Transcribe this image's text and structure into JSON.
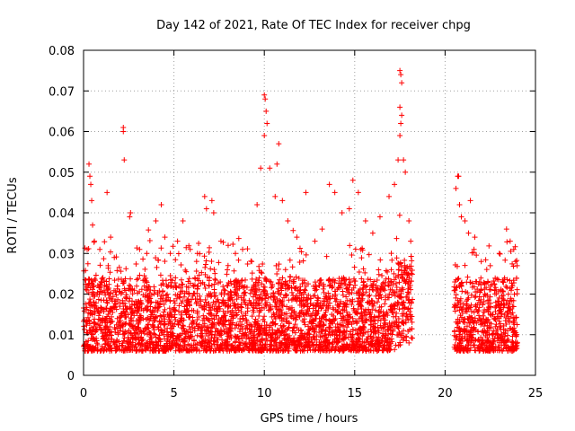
{
  "chart_data": {
    "type": "scatter",
    "title": "Day 142 of 2021, Rate Of TEC Index for receiver chpg",
    "xlabel": "GPS time / hours",
    "ylabel": "ROTI / TECUs",
    "xlim": [
      0,
      25
    ],
    "ylim": [
      0,
      0.08
    ],
    "xticks": [
      0,
      5,
      10,
      15,
      20,
      25
    ],
    "yticks": [
      0,
      0.01,
      0.02,
      0.03,
      0.04,
      0.05,
      0.06,
      0.07,
      0.08
    ],
    "xtick_labels": [
      "0",
      "5",
      "10",
      "15",
      "20",
      "25"
    ],
    "ytick_labels": [
      "0",
      "0.01",
      "0.02",
      "0.03",
      "0.04",
      "0.05",
      "0.06",
      "0.07",
      "0.08"
    ],
    "grid": true,
    "marker": "+",
    "color": "#ff0000",
    "data_gap_hours": [
      18.2,
      20.5
    ],
    "series": [
      {
        "name": "ROTI",
        "points": [
          [
            0.3,
            0.052
          ],
          [
            0.35,
            0.049
          ],
          [
            0.4,
            0.047
          ],
          [
            0.45,
            0.043
          ],
          [
            0.5,
            0.037
          ],
          [
            0.2,
            0.031
          ],
          [
            0.6,
            0.033
          ],
          [
            0.9,
            0.031
          ],
          [
            1.3,
            0.045
          ],
          [
            1.5,
            0.034
          ],
          [
            1.7,
            0.029
          ],
          [
            2.2,
            0.061
          ],
          [
            2.2,
            0.06
          ],
          [
            2.25,
            0.053
          ],
          [
            2.6,
            0.04
          ],
          [
            2.55,
            0.039
          ],
          [
            3.1,
            0.031
          ],
          [
            3.5,
            0.03
          ],
          [
            4.0,
            0.038
          ],
          [
            4.3,
            0.042
          ],
          [
            4.5,
            0.034
          ],
          [
            4.8,
            0.03
          ],
          [
            5.2,
            0.033
          ],
          [
            5.5,
            0.038
          ],
          [
            5.9,
            0.031
          ],
          [
            6.3,
            0.03
          ],
          [
            6.7,
            0.044
          ],
          [
            6.8,
            0.041
          ],
          [
            7.1,
            0.043
          ],
          [
            7.2,
            0.04
          ],
          [
            7.6,
            0.033
          ],
          [
            8.0,
            0.032
          ],
          [
            8.4,
            0.03
          ],
          [
            8.8,
            0.031
          ],
          [
            9.3,
            0.028
          ],
          [
            9.6,
            0.042
          ],
          [
            9.8,
            0.051
          ],
          [
            10.0,
            0.069
          ],
          [
            10.05,
            0.068
          ],
          [
            10.1,
            0.065
          ],
          [
            10.15,
            0.062
          ],
          [
            10.0,
            0.059
          ],
          [
            10.3,
            0.051
          ],
          [
            10.6,
            0.044
          ],
          [
            10.7,
            0.052
          ],
          [
            10.8,
            0.057
          ],
          [
            11.0,
            0.043
          ],
          [
            11.3,
            0.038
          ],
          [
            11.8,
            0.034
          ],
          [
            12.3,
            0.045
          ],
          [
            12.8,
            0.033
          ],
          [
            13.2,
            0.036
          ],
          [
            13.6,
            0.047
          ],
          [
            13.9,
            0.045
          ],
          [
            14.3,
            0.04
          ],
          [
            14.7,
            0.041
          ],
          [
            14.9,
            0.048
          ],
          [
            15.2,
            0.045
          ],
          [
            15.6,
            0.038
          ],
          [
            16.0,
            0.035
          ],
          [
            16.4,
            0.039
          ],
          [
            16.9,
            0.044
          ],
          [
            17.2,
            0.047
          ],
          [
            17.4,
            0.053
          ],
          [
            17.5,
            0.075
          ],
          [
            17.55,
            0.074
          ],
          [
            17.6,
            0.072
          ],
          [
            17.5,
            0.066
          ],
          [
            17.6,
            0.064
          ],
          [
            17.55,
            0.062
          ],
          [
            17.5,
            0.059
          ],
          [
            17.7,
            0.053
          ],
          [
            17.8,
            0.05
          ],
          [
            18.0,
            0.038
          ],
          [
            18.1,
            0.033
          ],
          [
            20.6,
            0.046
          ],
          [
            20.7,
            0.049
          ],
          [
            20.75,
            0.049
          ],
          [
            20.8,
            0.042
          ],
          [
            20.9,
            0.039
          ],
          [
            21.1,
            0.038
          ],
          [
            21.4,
            0.043
          ],
          [
            21.3,
            0.035
          ],
          [
            21.6,
            0.031
          ],
          [
            22.0,
            0.028
          ],
          [
            22.5,
            0.027
          ],
          [
            23.0,
            0.03
          ],
          [
            23.4,
            0.036
          ],
          [
            23.6,
            0.033
          ],
          [
            23.8,
            0.031
          ],
          [
            23.9,
            0.028
          ]
        ]
      }
    ]
  }
}
